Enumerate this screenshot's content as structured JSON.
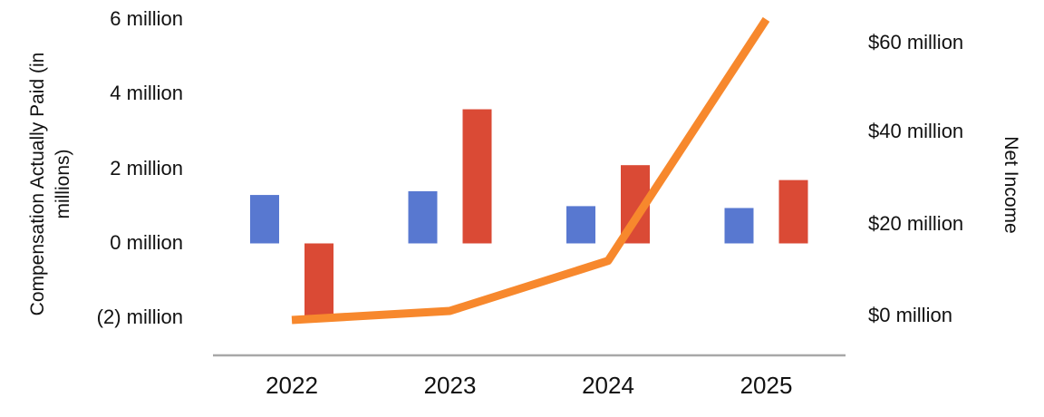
{
  "chart_data": {
    "type": "bar",
    "subtype": "combo-bar-line-dual-axis",
    "title": "",
    "categories": [
      "2022",
      "2023",
      "2024",
      "2025"
    ],
    "series": [
      {
        "name": "compensation-bar-blue",
        "type": "bar",
        "axis": "left",
        "color": "#5878d0",
        "values": [
          1.3,
          1.4,
          1.0,
          0.95
        ]
      },
      {
        "name": "compensation-bar-red",
        "type": "bar",
        "axis": "left",
        "color": "#da4a35",
        "values": [
          -2.0,
          3.6,
          2.1,
          1.7
        ]
      },
      {
        "name": "net-income-line",
        "type": "line",
        "axis": "right",
        "color": "#f7882d",
        "values": [
          -1,
          1,
          12,
          65
        ]
      }
    ],
    "left_axis": {
      "title": "Compensation Actually Paid (in millions)",
      "ticks": [
        "6 million",
        "4 million",
        "2 million",
        "0 million",
        "(2) million"
      ],
      "tick_values": [
        6,
        4,
        2,
        0,
        -2
      ],
      "range": [
        -3,
        6.5
      ]
    },
    "right_axis": {
      "title": "Net Income",
      "ticks": [
        "$60 million",
        "$40 million",
        "$20 million",
        "$0 million"
      ],
      "tick_values": [
        60,
        40,
        20,
        0
      ],
      "range": [
        -8.7,
        69
      ]
    },
    "grid": false,
    "legend": "none",
    "axis_line_color": "#a8a8a8",
    "text_color": "#111111",
    "background": "#ffffff"
  }
}
